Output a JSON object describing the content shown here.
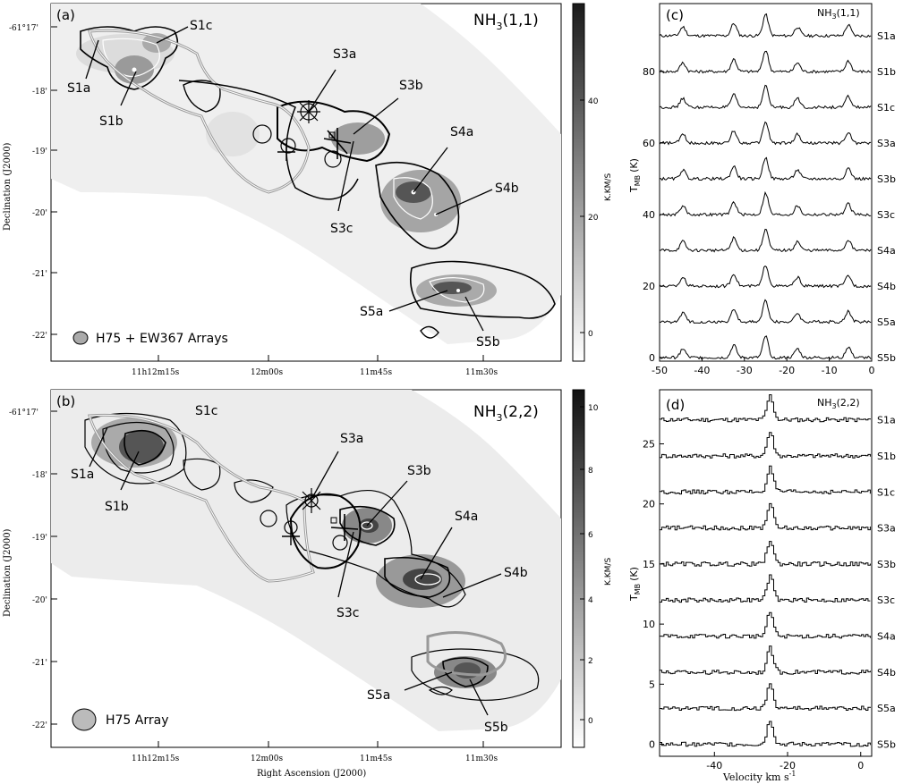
{
  "map_a": {
    "panel": "(a)",
    "title": "NH",
    "title_sub": "3",
    "title_tail": "(1,1)",
    "beam_label": "H75 + EW367 Arrays",
    "colorbar_unit": "K.KM/S",
    "colorbar_ticks": [
      "0",
      "20",
      "40"
    ],
    "dec_ticks": [
      "-61°17'",
      "-18'",
      "-19'",
      "-20'",
      "-21'",
      "-22'"
    ],
    "ra_ticks": [
      "11h12m15s",
      "12m00s",
      "11m45s",
      "11m30s"
    ],
    "sources": [
      "S1a",
      "S1b",
      "S1c",
      "S3a",
      "S3b",
      "S3c",
      "S4a",
      "S4b",
      "S5a",
      "S5b"
    ],
    "ylabel": "Declination (J2000)"
  },
  "map_b": {
    "panel": "(b)",
    "title": "NH",
    "title_sub": "3",
    "title_tail": "(2,2)",
    "beam_label": "H75 Array",
    "colorbar_unit": "K.KM/S",
    "colorbar_ticks": [
      "0",
      "2",
      "4",
      "6",
      "8",
      "10"
    ],
    "dec_ticks": [
      "-61°17'",
      "-18'",
      "-19'",
      "-20'",
      "-21'",
      "-22'"
    ],
    "ra_ticks": [
      "11h12m15s",
      "12m00s",
      "11m45s",
      "11m30s"
    ],
    "sources": [
      "S1a",
      "S1b",
      "S1c",
      "S3a",
      "S3b",
      "S3c",
      "S4a",
      "S4b",
      "S5a",
      "S5b"
    ],
    "ylabel": "Declination (J2000)",
    "xlabel": "Right Ascension (J2000)"
  },
  "spec_c": {
    "panel": "(c)",
    "title": "NH",
    "title_sub": "3",
    "title_tail": "(1,1)",
    "ylabel": "T",
    "ylabel_sub": "MB",
    "ylabel_tail": "(K)"
  },
  "spec_d": {
    "panel": "(d)",
    "title": "NH",
    "title_sub": "3",
    "title_tail": "(2,2)",
    "ylabel": "T",
    "ylabel_sub": "MB",
    "ylabel_tail": "(K)",
    "xlabel": "Velocity km s",
    "xlabel_sup": "-1"
  },
  "chart_data": [
    {
      "type": "line",
      "series": [
        {
          "name": "S1a",
          "offset": 90
        },
        {
          "name": "S1b",
          "offset": 80
        },
        {
          "name": "S1c",
          "offset": 70
        },
        {
          "name": "S3a",
          "offset": 60
        },
        {
          "name": "S3b",
          "offset": 50
        },
        {
          "name": "S3c",
          "offset": 40
        },
        {
          "name": "S4a",
          "offset": 30
        },
        {
          "name": "S4b",
          "offset": 20
        },
        {
          "name": "S5a",
          "offset": 10
        },
        {
          "name": "S5b",
          "offset": 0
        }
      ],
      "peaks_velocity": [
        -44.5,
        -32.5,
        -25,
        -17.5,
        -5.5
      ],
      "xlim": [
        -50,
        0
      ],
      "ylim": [
        -1,
        99
      ],
      "xticks": [
        -50,
        -40,
        -30,
        -20,
        -10,
        0
      ],
      "yticks": [
        0,
        20,
        40,
        60,
        80
      ]
    },
    {
      "type": "line",
      "series": [
        {
          "name": "S1a",
          "offset": 27
        },
        {
          "name": "S1b",
          "offset": 24
        },
        {
          "name": "S1c",
          "offset": 21
        },
        {
          "name": "S3a",
          "offset": 18
        },
        {
          "name": "S3b",
          "offset": 15
        },
        {
          "name": "S3c",
          "offset": 12
        },
        {
          "name": "S4a",
          "offset": 9
        },
        {
          "name": "S4b",
          "offset": 6
        },
        {
          "name": "S5a",
          "offset": 3
        },
        {
          "name": "S5b",
          "offset": 0
        }
      ],
      "peak_velocity": -25,
      "xlim": [
        -55,
        3
      ],
      "ylim": [
        -1,
        29.5
      ],
      "xticks": [
        -40,
        -20,
        0
      ],
      "yticks": [
        0,
        5,
        10,
        15,
        20,
        25
      ]
    }
  ]
}
